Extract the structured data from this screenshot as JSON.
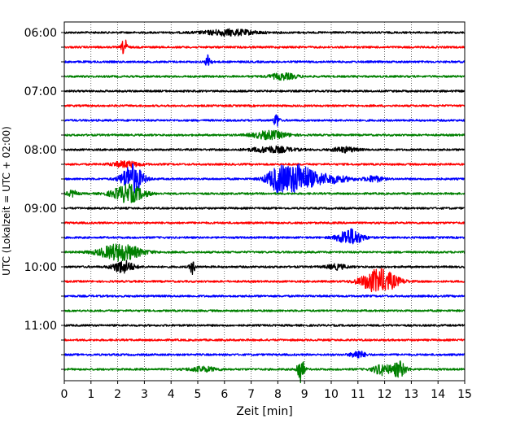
{
  "chart_data": {
    "type": "line",
    "title": "",
    "xlabel": "Zeit  [min]",
    "ylabel": "UTC (Lokalzeit = UTC + 02:00)",
    "xlim": [
      0,
      15
    ],
    "x_ticks": [
      0,
      1,
      2,
      3,
      4,
      5,
      6,
      7,
      8,
      9,
      10,
      11,
      12,
      13,
      14,
      15
    ],
    "y_tick_labels": [
      "06:00",
      "07:00",
      "08:00",
      "09:00",
      "10:00",
      "11:00"
    ],
    "vertical_grid": true,
    "trace_colors": [
      "#000000",
      "#ff0000",
      "#0000ff",
      "#008000"
    ],
    "traces": [
      {
        "start": "06:00",
        "color": "#000000",
        "events": [
          [
            6.2,
            0.6,
            1.5
          ]
        ]
      },
      {
        "start": "06:15",
        "color": "#ff0000",
        "events": [
          [
            2.25,
            1.8,
            0.15
          ]
        ]
      },
      {
        "start": "06:30",
        "color": "#0000ff",
        "events": [
          [
            5.4,
            1.6,
            0.15
          ]
        ]
      },
      {
        "start": "06:45",
        "color": "#008000",
        "events": [
          [
            8.2,
            0.6,
            0.8
          ]
        ]
      },
      {
        "start": "07:00",
        "color": "#000000",
        "events": []
      },
      {
        "start": "07:15",
        "color": "#ff0000",
        "events": []
      },
      {
        "start": "07:30",
        "color": "#0000ff",
        "events": [
          [
            7.95,
            1.5,
            0.15
          ]
        ]
      },
      {
        "start": "07:45",
        "color": "#008000",
        "events": [
          [
            7.7,
            0.8,
            1.0
          ]
        ]
      },
      {
        "start": "08:00",
        "color": "#000000",
        "events": [
          [
            7.8,
            0.6,
            1.2
          ],
          [
            10.5,
            0.5,
            0.7
          ]
        ]
      },
      {
        "start": "08:15",
        "color": "#ff0000",
        "events": [
          [
            2.3,
            0.6,
            0.8
          ]
        ]
      },
      {
        "start": "08:30",
        "color": "#0000ff",
        "events": [
          [
            2.55,
            3.0,
            0.6
          ],
          [
            8.05,
            2.6,
            0.7
          ],
          [
            8.8,
            2.6,
            0.7
          ],
          [
            9.7,
            1.0,
            1.4
          ],
          [
            11.6,
            0.6,
            0.5
          ]
        ]
      },
      {
        "start": "08:45",
        "color": "#008000",
        "events": [
          [
            2.4,
            1.8,
            0.9
          ],
          [
            0.3,
            0.6,
            0.3
          ]
        ]
      },
      {
        "start": "09:00",
        "color": "#000000",
        "events": []
      },
      {
        "start": "09:15",
        "color": "#ff0000",
        "events": []
      },
      {
        "start": "09:30",
        "color": "#0000ff",
        "events": [
          [
            10.7,
            1.7,
            0.7
          ]
        ]
      },
      {
        "start": "09:45",
        "color": "#008000",
        "events": [
          [
            2.1,
            1.7,
            1.2
          ]
        ]
      },
      {
        "start": "10:00",
        "color": "#000000",
        "events": [
          [
            2.2,
            1.3,
            0.6
          ],
          [
            4.8,
            1.4,
            0.15
          ],
          [
            10.2,
            0.5,
            0.6
          ]
        ]
      },
      {
        "start": "10:15",
        "color": "#ff0000",
        "events": [
          [
            11.8,
            2.5,
            1.0
          ]
        ]
      },
      {
        "start": "10:30",
        "color": "#0000ff",
        "events": []
      },
      {
        "start": "10:45",
        "color": "#008000",
        "events": []
      },
      {
        "start": "11:00",
        "color": "#000000",
        "events": []
      },
      {
        "start": "11:15",
        "color": "#ff0000",
        "events": []
      },
      {
        "start": "11:30",
        "color": "#0000ff",
        "events": [
          [
            11.0,
            0.8,
            0.4
          ]
        ]
      },
      {
        "start": "11:45",
        "color": "#008000",
        "events": [
          [
            8.85,
            2.8,
            0.2
          ],
          [
            11.9,
            1.1,
            0.5
          ],
          [
            12.55,
            1.6,
            0.4
          ],
          [
            5.2,
            0.5,
            0.8
          ]
        ]
      }
    ]
  }
}
